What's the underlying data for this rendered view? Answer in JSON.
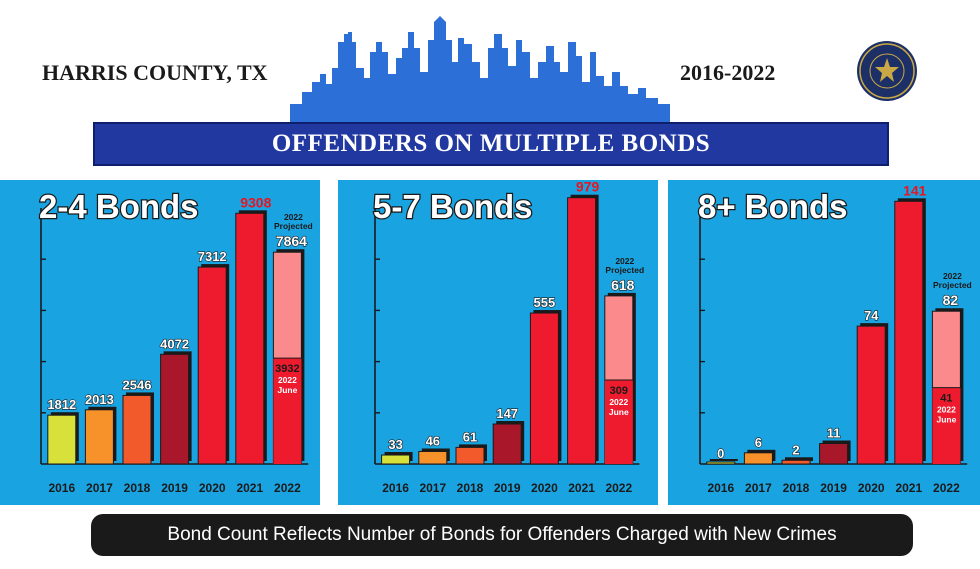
{
  "header": {
    "left_title": "HARRIS COUNTY, TX",
    "right_title": "2016-2022",
    "banner": "OFFENDERS ON MULTIPLE BONDS",
    "seal_icon": "district-attorney-seal-icon",
    "skyline_icon": "city-skyline-icon"
  },
  "footer": {
    "text": "Bond Count Reflects Number of Bonds for Offenders Charged with New Crimes"
  },
  "colors": {
    "panel_bg": "#1aa3e1",
    "year_2016": "#d8e03a",
    "year_2017": "#f7922b",
    "year_2018": "#f25a2b",
    "year_2019": "#a8182a",
    "year_2020": "#ee1b2e",
    "year_2021": "#ee1b2e",
    "projected": "#fa8a8c",
    "highlight_label": "#e8141f"
  },
  "chart_data": [
    {
      "type": "bar",
      "title": "2-4 Bonds",
      "categories": [
        "2016",
        "2017",
        "2018",
        "2019",
        "2020",
        "2021",
        "2022"
      ],
      "values": [
        1812,
        2013,
        2546,
        4072,
        7312,
        9308,
        7864
      ],
      "labels": [
        "1812",
        "2013",
        "2546",
        "4072",
        "7312",
        "9308",
        "7864"
      ],
      "inner_value": 3932,
      "inner_label": "3932",
      "inner_sub": [
        "2022",
        "June"
      ],
      "projected_note": [
        "2022",
        "Projected"
      ],
      "ylim": [
        0,
        10100
      ],
      "grid": false,
      "axis_marks": 4
    },
    {
      "type": "bar",
      "title": "5-7 Bonds",
      "categories": [
        "2016",
        "2017",
        "2018",
        "2019",
        "2020",
        "2021",
        "2022"
      ],
      "values": [
        33,
        46,
        61,
        147,
        555,
        979,
        618
      ],
      "labels": [
        "33",
        "46",
        "61",
        "147",
        "555",
        "979",
        "618"
      ],
      "inner_value": 309,
      "inner_label": "309",
      "inner_sub": [
        "2022",
        "June"
      ],
      "projected_note": [
        "2022",
        "Projected"
      ],
      "ylim": [
        0,
        1000
      ],
      "grid": false,
      "axis_marks": 4
    },
    {
      "type": "bar",
      "title": "8+ Bonds",
      "categories": [
        "2016",
        "2017",
        "2018",
        "2019",
        "2020",
        "2021",
        "2022"
      ],
      "values": [
        0,
        6,
        2,
        11,
        74,
        141,
        82
      ],
      "labels": [
        "0",
        "6",
        "2",
        "11",
        "74",
        "141",
        "82"
      ],
      "inner_value": 41,
      "inner_label": "41",
      "inner_sub": [
        "2022",
        "June"
      ],
      "projected_note": [
        "2022",
        "Projected"
      ],
      "ylim": [
        0,
        146
      ],
      "grid": false,
      "axis_marks": 4
    }
  ]
}
